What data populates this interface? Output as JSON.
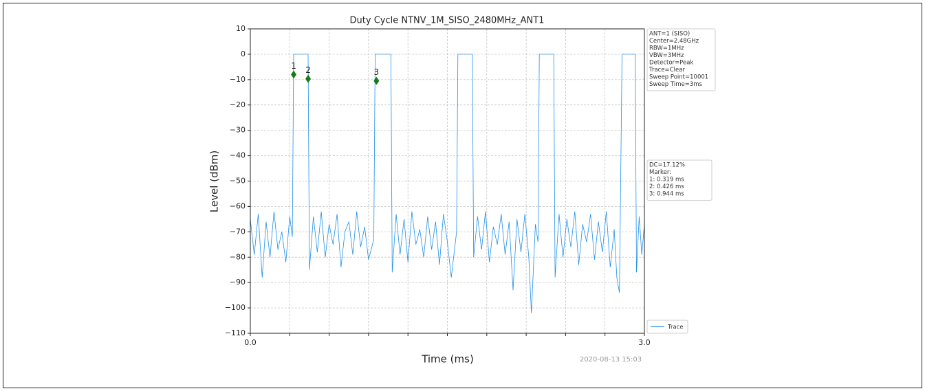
{
  "chart_data": {
    "type": "line",
    "title": "Duty Cycle NTNV_1M_SISO_2480MHz_ANT1",
    "xlabel": "Time (ms)",
    "ylabel": "Level (dBm)",
    "timestamp": "2020-08-13 15:03",
    "xlim": [
      0,
      3.0
    ],
    "ylim": [
      -110,
      10
    ],
    "xticks": [
      {
        "value": 0,
        "label": "0.0"
      },
      {
        "value": 3.0,
        "label": "3.0"
      }
    ],
    "minor_xticks": [
      0.3,
      0.6,
      0.9,
      1.2,
      1.5,
      1.8,
      2.1,
      2.4,
      2.7
    ],
    "yticks": [
      {
        "value": -110,
        "label": "−110"
      },
      {
        "value": -100,
        "label": "−100"
      },
      {
        "value": -90,
        "label": "−90"
      },
      {
        "value": -80,
        "label": "−80"
      },
      {
        "value": -70,
        "label": "−70"
      },
      {
        "value": -60,
        "label": "−60"
      },
      {
        "value": -50,
        "label": "−50"
      },
      {
        "value": -40,
        "label": "−40"
      },
      {
        "value": -30,
        "label": "−30"
      },
      {
        "value": -20,
        "label": "−20"
      },
      {
        "value": -10,
        "label": "−10"
      },
      0,
      10
    ],
    "grid": true,
    "series": [
      {
        "name": "Trace",
        "color": "#1f8fe8",
        "x": [
          0,
          0.03,
          0.06,
          0.09,
          0.12,
          0.15,
          0.18,
          0.21,
          0.24,
          0.27,
          0.3,
          0.32,
          0.33,
          0.44,
          0.45,
          0.48,
          0.51,
          0.54,
          0.57,
          0.6,
          0.63,
          0.66,
          0.69,
          0.72,
          0.75,
          0.78,
          0.81,
          0.84,
          0.87,
          0.9,
          0.94,
          0.95,
          1.07,
          1.08,
          1.11,
          1.14,
          1.17,
          1.2,
          1.23,
          1.26,
          1.29,
          1.32,
          1.35,
          1.38,
          1.41,
          1.44,
          1.47,
          1.5,
          1.53,
          1.57,
          1.58,
          1.69,
          1.7,
          1.73,
          1.76,
          1.79,
          1.82,
          1.85,
          1.88,
          1.91,
          1.94,
          1.97,
          2.0,
          2.03,
          2.06,
          2.09,
          2.12,
          2.14,
          2.17,
          2.19,
          2.2,
          2.31,
          2.32,
          2.35,
          2.38,
          2.41,
          2.44,
          2.47,
          2.5,
          2.53,
          2.56,
          2.59,
          2.62,
          2.65,
          2.68,
          2.71,
          2.74,
          2.77,
          2.79,
          2.81,
          2.83,
          2.93,
          2.94,
          2.96,
          2.98,
          3.0
        ],
        "values": [
          -65,
          -79,
          -63,
          -88,
          -66,
          -80,
          -62,
          -77,
          -70,
          -82,
          -64,
          -72,
          0,
          0,
          -85,
          -64,
          -78,
          -62,
          -80,
          -67,
          -75,
          -63,
          -84,
          -70,
          -66,
          -79,
          -62,
          -76,
          -68,
          -81,
          -73,
          0,
          0,
          -86,
          -63,
          -79,
          -65,
          -82,
          -62,
          -75,
          -69,
          -80,
          -64,
          -77,
          -66,
          -83,
          -63,
          -74,
          -88,
          -70,
          0,
          0,
          -80,
          -64,
          -77,
          -62,
          -82,
          -68,
          -75,
          -63,
          -79,
          -66,
          -93,
          -65,
          -78,
          -63,
          -80,
          -102,
          -67,
          -74,
          0,
          0,
          -88,
          -63,
          -80,
          -65,
          -76,
          -62,
          -83,
          -67,
          -74,
          -63,
          -81,
          -66,
          -78,
          -62,
          -84,
          -69,
          -88,
          -94,
          0,
          0,
          -86,
          -64,
          -79,
          -67
        ]
      }
    ],
    "markers": [
      {
        "label": "1",
        "x": 0.33,
        "y": -8,
        "color": "#1a7a1a"
      },
      {
        "label": "2",
        "x": 0.44,
        "y": -9.7,
        "color": "#1a7a1a"
      },
      {
        "label": "3",
        "x": 0.96,
        "y": -10.5,
        "color": "#1a7a1a"
      }
    ],
    "settings_text": [
      "ANT=1 (SISO)",
      "Center=2.48GHz",
      "RBW=1MHz",
      "VBW=3MHz",
      "Detector=Peak",
      "Trace=Clear",
      "Sweep Point=10001",
      "Sweep Time=3ms"
    ],
    "result_text": [
      "DC=17.12%",
      "Marker:",
      "1: 0.319 ms",
      "2: 0.426 ms",
      "3: 0.944 ms"
    ],
    "legend": "lower-right"
  }
}
